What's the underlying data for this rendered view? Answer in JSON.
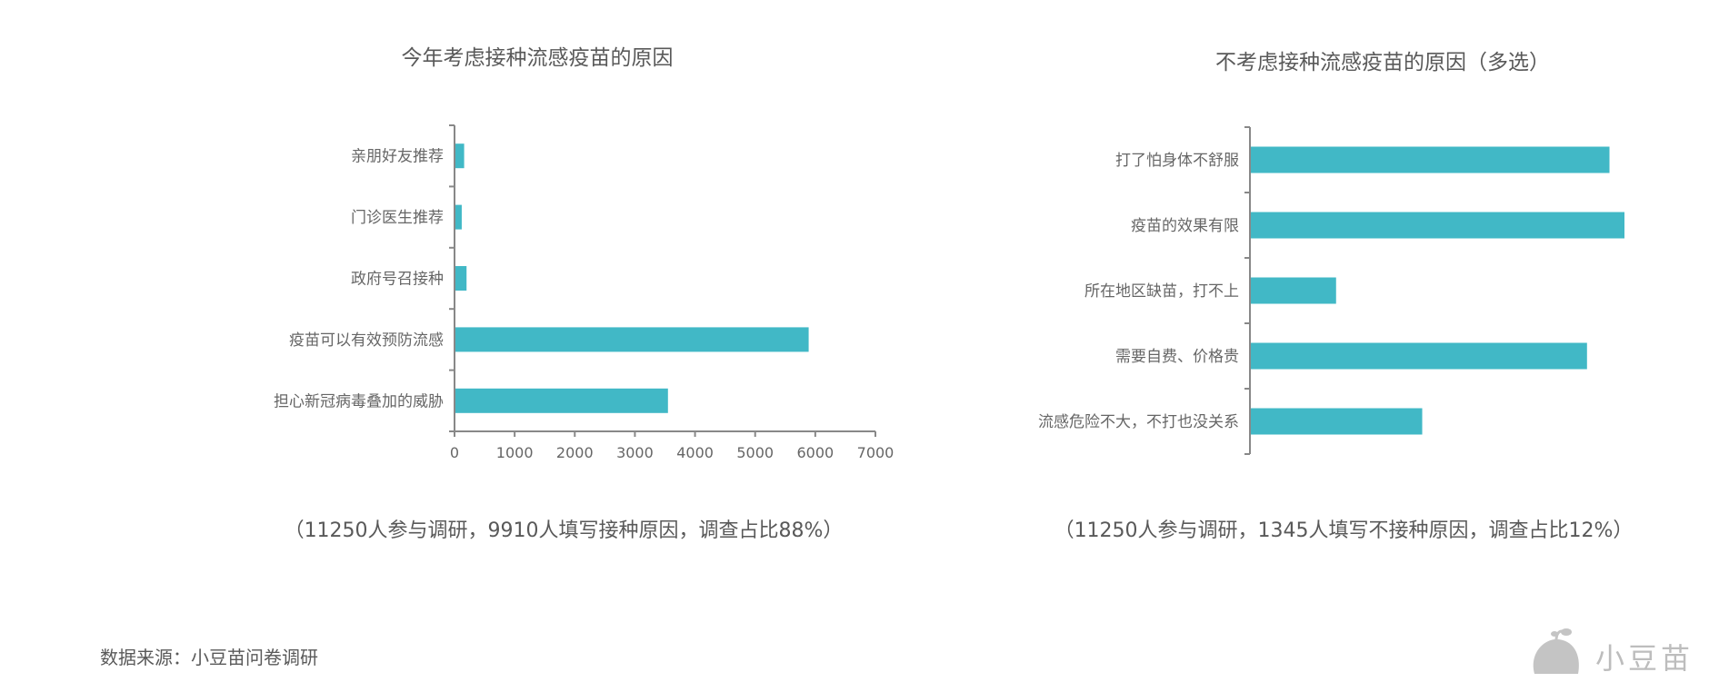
{
  "chart_data": [
    {
      "type": "bar",
      "orientation": "horizontal",
      "title": "今年考虑接种流感疫苗的原因",
      "categories": [
        "亲朋好友推荐",
        "门诊医生推荐",
        "政府号召接种",
        "疫苗可以有效预防流感",
        "担心新冠病毒叠加的威胁"
      ],
      "values": [
        160,
        120,
        200,
        5890,
        3550
      ],
      "xlim": [
        0,
        7000
      ],
      "xticks": [
        "0",
        "1000",
        "2000",
        "3000",
        "4000",
        "5000",
        "6000",
        "7000"
      ],
      "grid": false,
      "color": "#41b8c6",
      "caption": "（11250人参与调研，9910人填写接种原因，调查占比88%）"
    },
    {
      "type": "bar",
      "orientation": "horizontal",
      "title": "不考虑接种流感疫苗的原因（多选）",
      "categories": [
        "打了怕身体不舒服",
        "疫苗的效果有限",
        "所在地区缺苗，打不上",
        "需要自费、价格贵",
        "流感危险不大，不打也没关系"
      ],
      "values": [
        96,
        100,
        23,
        90,
        46
      ],
      "xlim": [
        0,
        100
      ],
      "xticks": [],
      "grid": false,
      "color": "#41b8c6",
      "caption": "（11250人参与调研，1345人填写不接种原因，调查占比12%）"
    }
  ],
  "footer": {
    "source": "数据来源：小豆苗问卷调研",
    "logo_text": "小豆苗"
  }
}
